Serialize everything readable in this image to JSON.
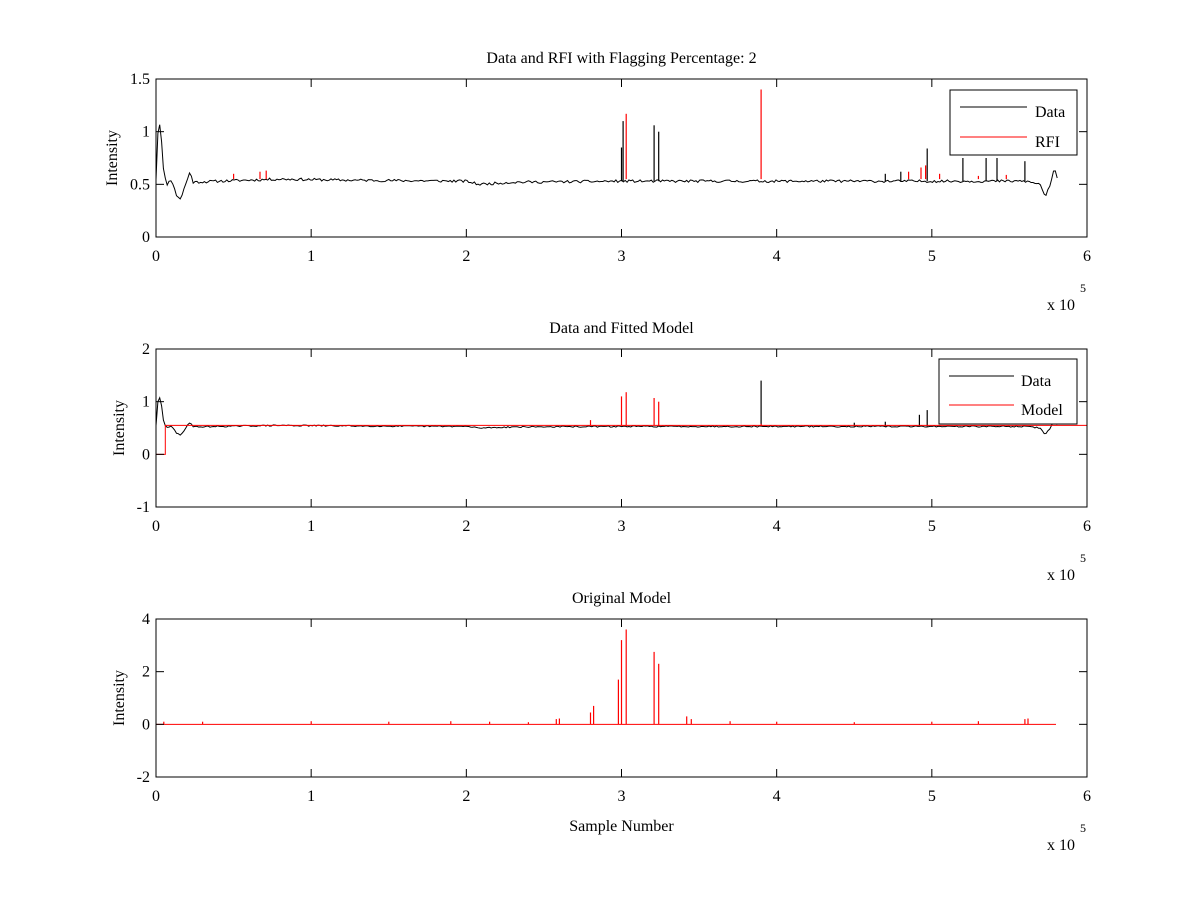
{
  "colors": {
    "background": "#ffffff",
    "axes": "#000000",
    "data": "#000000",
    "red": "#ff0000"
  },
  "chart_data": [
    {
      "type": "line",
      "title": "Data and RFI with Flagging Percentage: 2",
      "xlabel": "",
      "ylabel": "Intensity",
      "xlim": [
        0,
        600000
      ],
      "ylim": [
        0,
        1.5
      ],
      "xticks": [
        0,
        1,
        2,
        3,
        4,
        5,
        6
      ],
      "yticks": [
        "0",
        "0.5",
        "1",
        "1.5"
      ],
      "xexponent": "x 10",
      "xexponent_power": "5",
      "legend": {
        "position": "top-right",
        "entries": [
          "Data",
          "RFI"
        ]
      },
      "series": [
        {
          "name": "Data",
          "color": "#000000",
          "baseline": 0.53,
          "shape": [
            [
              0,
              0.55
            ],
            [
              1500,
              1.1
            ],
            [
              3000,
              1.05
            ],
            [
              5000,
              0.6
            ],
            [
              7000,
              0.5
            ],
            [
              10000,
              0.55
            ],
            [
              13000,
              0.4
            ],
            [
              16000,
              0.36
            ],
            [
              19000,
              0.5
            ],
            [
              22000,
              0.62
            ],
            [
              24000,
              0.52
            ],
            [
              40000,
              0.53
            ],
            [
              80000,
              0.55
            ],
            [
              120000,
              0.54
            ],
            [
              200000,
              0.53
            ],
            [
              208000,
              0.5
            ],
            [
              230000,
              0.52
            ],
            [
              300000,
              0.53
            ],
            [
              560000,
              0.53
            ],
            [
              570000,
              0.5
            ],
            [
              573000,
              0.38
            ],
            [
              576000,
              0.48
            ],
            [
              579000,
              0.65
            ],
            [
              581000,
              0.55
            ]
          ],
          "spikes": [
            [
              300000,
              0.85
            ],
            [
              301000,
              1.1
            ],
            [
              321000,
              1.06
            ],
            [
              324000,
              1.0
            ],
            [
              497000,
              0.84
            ],
            [
              520000,
              0.75
            ],
            [
              535000,
              0.75
            ],
            [
              542000,
              0.75
            ],
            [
              560000,
              0.72
            ],
            [
              470000,
              0.6
            ],
            [
              480000,
              0.62
            ]
          ]
        },
        {
          "name": "RFI",
          "color": "#ff0000",
          "spikes": [
            [
              50000,
              0.6
            ],
            [
              67000,
              0.62
            ],
            [
              71000,
              0.63
            ],
            [
              303000,
              1.17
            ],
            [
              390000,
              1.4
            ],
            [
              485000,
              0.62
            ],
            [
              493000,
              0.66
            ],
            [
              496000,
              0.68
            ],
            [
              505000,
              0.6
            ],
            [
              530000,
              0.58
            ],
            [
              548000,
              0.59
            ]
          ]
        }
      ]
    },
    {
      "type": "line",
      "title": "Data and Fitted Model",
      "xlabel": "",
      "ylabel": "Intensity",
      "xlim": [
        0,
        600000
      ],
      "ylim": [
        -1,
        2
      ],
      "xticks": [
        0,
        1,
        2,
        3,
        4,
        5,
        6
      ],
      "yticks": [
        "-1",
        "0",
        "1",
        "2"
      ],
      "xexponent": "x 10",
      "xexponent_power": "5",
      "legend": {
        "position": "top-right",
        "entries": [
          "Data",
          "Model"
        ]
      },
      "series": [
        {
          "name": "Data",
          "color": "#000000",
          "baseline": 0.53,
          "shape": [
            [
              0,
              0.55
            ],
            [
              1500,
              1.1
            ],
            [
              3000,
              1.05
            ],
            [
              5000,
              0.6
            ],
            [
              7000,
              0.5
            ],
            [
              10000,
              0.55
            ],
            [
              13000,
              0.4
            ],
            [
              16000,
              0.36
            ],
            [
              19000,
              0.5
            ],
            [
              22000,
              0.62
            ],
            [
              24000,
              0.52
            ],
            [
              40000,
              0.53
            ],
            [
              80000,
              0.55
            ],
            [
              120000,
              0.54
            ],
            [
              200000,
              0.53
            ],
            [
              208000,
              0.5
            ],
            [
              230000,
              0.52
            ],
            [
              300000,
              0.53
            ],
            [
              560000,
              0.53
            ],
            [
              570000,
              0.5
            ],
            [
              573000,
              0.38
            ],
            [
              576000,
              0.48
            ],
            [
              579000,
              0.65
            ],
            [
              581000,
              0.55
            ]
          ],
          "spikes": [
            [
              390000,
              1.4
            ],
            [
              497000,
              0.84
            ],
            [
              492000,
              0.75
            ],
            [
              470000,
              0.62
            ],
            [
              450000,
              0.6
            ]
          ]
        },
        {
          "name": "Model",
          "color": "#ff0000",
          "shape": [
            [
              0,
              0
            ],
            [
              6000,
              0
            ],
            [
              6000,
              0.55
            ],
            [
              600000,
              0.55
            ]
          ],
          "spikes": [
            [
              300000,
              1.1
            ],
            [
              303000,
              1.18
            ],
            [
              321000,
              1.07
            ],
            [
              324000,
              1.0
            ],
            [
              280000,
              0.65
            ],
            [
              390000,
              0.58
            ]
          ]
        }
      ]
    },
    {
      "type": "line",
      "title": "Original Model",
      "xlabel": "Sample Number",
      "ylabel": "Intensity",
      "xlim": [
        0,
        600000
      ],
      "ylim": [
        -2,
        4
      ],
      "xticks": [
        0,
        1,
        2,
        3,
        4,
        5,
        6
      ],
      "yticks": [
        "-2",
        "0",
        "2",
        "4"
      ],
      "xexponent": "x 10",
      "xexponent_power": "5",
      "series": [
        {
          "name": "",
          "color": "#ff0000",
          "baseline": 0,
          "shape": [
            [
              0,
              0
            ],
            [
              580000,
              0
            ]
          ],
          "spikes": [
            [
              298000,
              1.7
            ],
            [
              300000,
              3.2
            ],
            [
              303000,
              3.6
            ],
            [
              321000,
              2.75
            ],
            [
              324000,
              2.3
            ],
            [
              280000,
              0.45
            ],
            [
              282000,
              0.7
            ],
            [
              258000,
              0.2
            ],
            [
              260000,
              0.22
            ],
            [
              342000,
              0.3
            ],
            [
              345000,
              0.2
            ],
            [
              560000,
              0.2
            ],
            [
              562000,
              0.22
            ],
            [
              5000,
              0.1
            ],
            [
              30000,
              0.1
            ],
            [
              100000,
              0.12
            ],
            [
              150000,
              0.1
            ],
            [
              190000,
              0.12
            ],
            [
              215000,
              0.1
            ],
            [
              240000,
              0.08
            ],
            [
              370000,
              0.12
            ],
            [
              400000,
              0.1
            ],
            [
              450000,
              0.08
            ],
            [
              500000,
              0.1
            ],
            [
              530000,
              0.12
            ]
          ]
        }
      ]
    }
  ]
}
